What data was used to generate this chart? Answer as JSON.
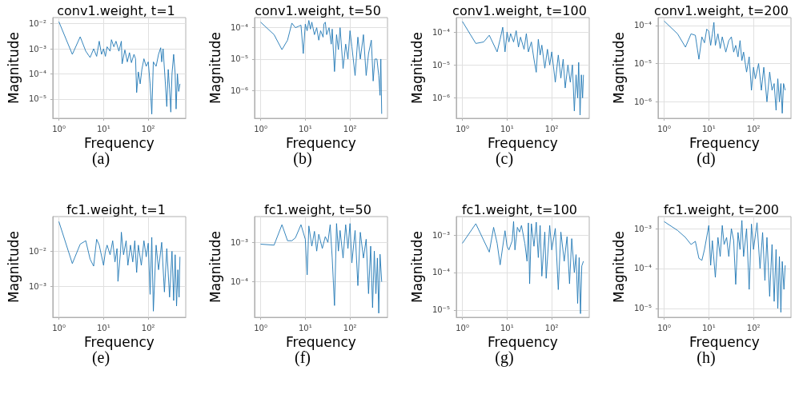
{
  "chart_data": [
    {
      "type": "line",
      "title": "conv1.weight, t=1",
      "xlabel": "Frequency",
      "ylabel": "Magnitude",
      "annotations": [
        "(a)"
      ],
      "log": "xy",
      "grid": true,
      "xlim": [
        0.73,
        690
      ],
      "xticks": [
        {
          "value": 1,
          "label": "10⁰"
        },
        {
          "value": 10,
          "label": "10¹"
        },
        {
          "value": 100,
          "label": "10²"
        }
      ],
      "ylim": [
        1.7e-06,
        0.0175
      ],
      "yticks": [
        {
          "value": 0.01,
          "label": "10⁻²"
        },
        {
          "value": 0.001,
          "label": "10⁻³"
        },
        {
          "value": 0.0001,
          "label": "10⁻⁴"
        },
        {
          "value": 1e-05,
          "label": "10⁻⁵"
        }
      ],
      "series": [
        {
          "color": "#1f77b4",
          "x": [
            1,
            2,
            3,
            4,
            5,
            6,
            7,
            8,
            9,
            10,
            11,
            12,
            14,
            15,
            17,
            19,
            22,
            25,
            26,
            30,
            34,
            38,
            42,
            48,
            52,
            55,
            60,
            66,
            72,
            80,
            90,
            100,
            110,
            120,
            130,
            150,
            170,
            190,
            200,
            215,
            240,
            260,
            280,
            300,
            320,
            340,
            370,
            400,
            420,
            450,
            480,
            512
          ],
          "values": [
            0.012,
            0.0006,
            0.003,
            0.0008,
            0.00045,
            0.001,
            0.0005,
            0.002,
            0.0006,
            0.001,
            0.0005,
            0.0012,
            0.0008,
            0.0023,
            0.0012,
            0.002,
            0.0008,
            0.002,
            0.00025,
            0.0009,
            0.0003,
            0.0007,
            0.00028,
            0.0006,
            0.0004,
            1.8e-05,
            0.00012,
            4e-05,
            0.00015,
            0.0004,
            0.0002,
            0.0003,
            4e-05,
            2.5e-06,
            0.0003,
            0.0002,
            0.0006,
            0.0011,
            0.0003,
            0.001,
            5e-05,
            5e-06,
            0.00015,
            2.5e-05,
            3e-06,
            0.0001,
            0.0006,
            0.0001,
            4e-06,
            0.0001,
            2e-05,
            4e-05
          ]
        }
      ]
    },
    {
      "type": "line",
      "title": "conv1.weight, t=50",
      "xlabel": "Frequency",
      "ylabel": "Magnitude",
      "annotations": [
        "(b)"
      ],
      "log": "xy",
      "grid": true,
      "xlim": [
        0.73,
        690
      ],
      "xticks": [
        {
          "value": 1,
          "label": "10⁰"
        },
        {
          "value": 10,
          "label": "10¹"
        },
        {
          "value": 100,
          "label": "10²"
        }
      ],
      "ylim": [
        1.3e-07,
        0.00021
      ],
      "yticks": [
        {
          "value": 0.0001,
          "label": "10⁻⁴"
        },
        {
          "value": 1e-05,
          "label": "10⁻⁵"
        },
        {
          "value": 1e-06,
          "label": "10⁻⁶"
        }
      ],
      "series": [
        {
          "color": "#1f77b4",
          "x": [
            1,
            2,
            3,
            4,
            5,
            6,
            7,
            8,
            9,
            10,
            11,
            12,
            13,
            14,
            16,
            18,
            20,
            22,
            25,
            26,
            28,
            30,
            34,
            38,
            40,
            45,
            50,
            55,
            60,
            70,
            80,
            90,
            100,
            110,
            130,
            150,
            170,
            200,
            230,
            260,
            300,
            330,
            360,
            400,
            440,
            470,
            490,
            512
          ],
          "values": [
            0.00015,
            6e-05,
            2e-05,
            4e-05,
            0.00014,
            0.0001,
            0.00011,
            0.00012,
            1.5e-05,
            0.00013,
            8e-05,
            0.00017,
            9e-05,
            0.00015,
            6e-05,
            0.0001,
            4e-05,
            8e-05,
            5e-05,
            0.00013,
            0.00015,
            6e-05,
            0.0001,
            3e-05,
            9e-05,
            4e-06,
            6e-05,
            2e-05,
            0.0001,
            5e-06,
            3e-05,
            1e-05,
            8e-05,
            2.5e-05,
            3e-06,
            5e-05,
            1e-05,
            6e-05,
            3e-06,
            1.5e-05,
            4e-05,
            2e-06,
            1e-05,
            1e-05,
            3e-06,
            7e-07,
            1e-05,
            1.8e-07
          ]
        }
      ]
    },
    {
      "type": "line",
      "title": "conv1.weight, t=100",
      "xlabel": "Frequency",
      "ylabel": "Magnitude",
      "annotations": [
        "(c)"
      ],
      "log": "xy",
      "grid": true,
      "xlim": [
        0.73,
        690
      ],
      "xticks": [
        {
          "value": 1,
          "label": "10⁰"
        },
        {
          "value": 10,
          "label": "10¹"
        },
        {
          "value": 100,
          "label": "10²"
        }
      ],
      "ylim": [
        2.4e-07,
        0.000275
      ],
      "yticks": [
        {
          "value": 0.0001,
          "label": "10⁻⁴"
        },
        {
          "value": 1e-05,
          "label": "10⁻⁵"
        },
        {
          "value": 1e-06,
          "label": "10⁻⁶"
        }
      ],
      "series": [
        {
          "color": "#1f77b4",
          "x": [
            1,
            2,
            3,
            4,
            6,
            7,
            8,
            9,
            10,
            11,
            12,
            14,
            16,
            18,
            20,
            24,
            27,
            30,
            35,
            40,
            45,
            50,
            55,
            60,
            70,
            80,
            90,
            100,
            120,
            140,
            160,
            180,
            200,
            230,
            260,
            290,
            320,
            350,
            380,
            400,
            430,
            460,
            490,
            512
          ],
          "values": [
            0.00021,
            4.5e-05,
            5e-05,
            8e-05,
            2.5e-05,
            6e-05,
            0.00014,
            2.5e-05,
            0.0001,
            5e-05,
            9e-05,
            5e-05,
            0.00011,
            3.5e-05,
            7e-05,
            3e-05,
            9e-05,
            2.5e-05,
            5e-05,
            1.5e-05,
            6e-06,
            6e-05,
            2e-05,
            4e-05,
            8e-06,
            3e-05,
            1e-05,
            2.5e-05,
            3e-06,
            2e-05,
            4e-06,
            1.5e-05,
            2e-06,
            1e-05,
            3e-06,
            1e-05,
            4e-07,
            5e-06,
            1e-06,
            1.2e-05,
            3e-07,
            5e-06,
            1e-06,
            5e-06
          ]
        }
      ]
    },
    {
      "type": "line",
      "title": "conv1.weight, t=200",
      "xlabel": "Frequency",
      "ylabel": "Magnitude",
      "annotations": [
        "(d)"
      ],
      "log": "xy",
      "grid": true,
      "xlim": [
        0.73,
        690
      ],
      "xticks": [
        {
          "value": 1,
          "label": "10⁰"
        },
        {
          "value": 10,
          "label": "10¹"
        },
        {
          "value": 100,
          "label": "10²"
        }
      ],
      "ylim": [
        3.7e-07,
        0.00016
      ],
      "yticks": [
        {
          "value": 0.0001,
          "label": "10⁻⁴"
        },
        {
          "value": 1e-05,
          "label": "10⁻⁵"
        },
        {
          "value": 1e-06,
          "label": "10⁻⁶"
        }
      ],
      "series": [
        {
          "color": "#1f77b4",
          "x": [
            1,
            2,
            3,
            4,
            5,
            6,
            7,
            8,
            9,
            10,
            11,
            12,
            13,
            14,
            16,
            18,
            20,
            24,
            28,
            32,
            36,
            40,
            45,
            50,
            55,
            60,
            70,
            80,
            90,
            100,
            110,
            130,
            150,
            170,
            200,
            230,
            260,
            290,
            320,
            350,
            380,
            410,
            440,
            470,
            512
          ],
          "values": [
            0.00013,
            6e-05,
            2.7e-05,
            6e-05,
            5.5e-05,
            1.3e-05,
            5e-05,
            3.5e-05,
            8e-05,
            7e-05,
            3e-05,
            6e-05,
            0.00012,
            3e-05,
            6e-05,
            2.5e-05,
            5e-05,
            2e-05,
            4e-05,
            5e-05,
            2e-05,
            3e-05,
            1.5e-05,
            4e-05,
            1.2e-05,
            2e-05,
            6e-06,
            1.5e-05,
            2e-06,
            8e-06,
            4e-06,
            1e-05,
            2e-06,
            8e-06,
            1e-06,
            6e-06,
            2e-06,
            3e-06,
            6e-07,
            4e-06,
            1e-06,
            3e-06,
            5e-07,
            3e-06,
            2e-06
          ]
        }
      ]
    },
    {
      "type": "line",
      "title": "fc1.weight, t=1",
      "xlabel": "Frequency",
      "ylabel": "Magnitude",
      "annotations": [
        "(e)"
      ],
      "log": "xy",
      "grid": true,
      "xlim": [
        0.73,
        690
      ],
      "xticks": [
        {
          "value": 1,
          "label": "10⁰"
        },
        {
          "value": 10,
          "label": "10¹"
        },
        {
          "value": 100,
          "label": "10²"
        }
      ],
      "ylim": [
        0.000134,
        0.097
      ],
      "yticks": [
        {
          "value": 0.01,
          "label": "10⁻²"
        },
        {
          "value": 0.001,
          "label": "10⁻³"
        }
      ],
      "series": [
        {
          "color": "#1f77b4",
          "x": [
            1,
            2,
            3,
            4,
            5,
            6,
            7,
            8,
            10,
            11,
            12,
            14,
            16,
            18,
            20,
            21,
            24,
            25,
            28,
            32,
            35,
            40,
            45,
            50,
            55,
            60,
            70,
            80,
            90,
            100,
            110,
            120,
            130,
            150,
            170,
            200,
            230,
            260,
            300,
            340,
            370,
            400,
            430,
            460,
            490,
            512
          ],
          "values": [
            0.07,
            0.0045,
            0.016,
            0.02,
            0.006,
            0.0038,
            0.022,
            0.015,
            0.004,
            0.01,
            0.015,
            0.008,
            0.02,
            0.005,
            0.012,
            0.0014,
            0.01,
            0.035,
            0.008,
            0.02,
            0.004,
            0.015,
            0.005,
            0.02,
            0.0025,
            0.015,
            0.004,
            0.02,
            0.007,
            0.017,
            0.0006,
            0.025,
            0.0002,
            0.015,
            0.003,
            0.018,
            0.0007,
            0.012,
            0.0005,
            0.01,
            0.0004,
            0.008,
            0.00028,
            0.003,
            0.0005,
            0.007
          ]
        }
      ]
    },
    {
      "type": "line",
      "title": "fc1.weight, t=50",
      "xlabel": "Frequency",
      "ylabel": "Magnitude",
      "annotations": [
        "(f)"
      ],
      "log": "xy",
      "grid": true,
      "xlim": [
        0.73,
        690
      ],
      "xticks": [
        {
          "value": 1,
          "label": "10⁰"
        },
        {
          "value": 10,
          "label": "10¹"
        },
        {
          "value": 100,
          "label": "10²"
        }
      ],
      "ylim": [
        1.26e-05,
        0.0045
      ],
      "yticks": [
        {
          "value": 0.001,
          "label": "10⁻³"
        },
        {
          "value": 0.0001,
          "label": "10⁻⁴"
        }
      ],
      "series": [
        {
          "color": "#1f77b4",
          "x": [
            1,
            2,
            3,
            4,
            5,
            6,
            8,
            10,
            11,
            12,
            14,
            16,
            18,
            20,
            24,
            28,
            32,
            36,
            40,
            45,
            50,
            55,
            60,
            70,
            80,
            90,
            100,
            110,
            130,
            150,
            170,
            200,
            230,
            260,
            290,
            320,
            350,
            380,
            410,
            440,
            470,
            512
          ],
          "values": [
            0.0009,
            0.00085,
            0.0028,
            0.0011,
            0.0011,
            0.0013,
            0.0028,
            0.0012,
            0.00015,
            0.0026,
            0.0008,
            0.0019,
            0.0006,
            0.0016,
            0.0007,
            0.0014,
            0.001,
            0.0028,
            0.0004,
            2.5e-05,
            0.003,
            0.0006,
            0.002,
            0.0004,
            0.0028,
            0.0007,
            0.003,
            0.0003,
            0.002,
            8e-05,
            0.0018,
            0.0004,
            0.0012,
            5e-05,
            0.0008,
            2.2e-05,
            0.0006,
            5e-05,
            0.0004,
            1.6e-05,
            0.0005,
            0.0001
          ]
        }
      ]
    },
    {
      "type": "line",
      "title": "fc1.weight, t=100",
      "xlabel": "Frequency",
      "ylabel": "Magnitude",
      "annotations": [
        "(g)"
      ],
      "log": "xy",
      "grid": true,
      "xlim": [
        0.73,
        690
      ],
      "xticks": [
        {
          "value": 1,
          "label": "10⁰"
        },
        {
          "value": 10,
          "label": "10¹"
        },
        {
          "value": 100,
          "label": "10²"
        }
      ],
      "ylim": [
        6.4e-06,
        0.0031
      ],
      "yticks": [
        {
          "value": 0.001,
          "label": "10⁻³"
        },
        {
          "value": 0.0001,
          "label": "10⁻⁴"
        },
        {
          "value": 1e-05,
          "label": "10⁻⁵"
        }
      ],
      "series": [
        {
          "color": "#1f77b4",
          "x": [
            1,
            2,
            4,
            5,
            6,
            7,
            9,
            10,
            11,
            13,
            14,
            15,
            17,
            19,
            21,
            25,
            28,
            30,
            32,
            35,
            40,
            45,
            50,
            55,
            60,
            70,
            75,
            90,
            100,
            120,
            140,
            160,
            190,
            220,
            250,
            280,
            320,
            350,
            380,
            410,
            440,
            470,
            512
          ],
          "values": [
            0.0006,
            0.002,
            0.00035,
            0.0016,
            0.0006,
            0.00016,
            0.0013,
            0.0005,
            0.0004,
            0.0007,
            0.0023,
            0.0004,
            0.0016,
            0.0012,
            0.0018,
            0.0006,
            0.0002,
            0.0021,
            5e-05,
            0.002,
            0.0005,
            0.0022,
            0.00025,
            0.0018,
            8e-05,
            0.0012,
            7e-05,
            0.0018,
            0.0004,
            0.0015,
            3.5e-05,
            0.0012,
            0.0002,
            0.0009,
            5e-05,
            0.0008,
            0.0001,
            0.0003,
            1.5e-05,
            0.00025,
            8e-06,
            0.00015,
            0.0002
          ]
        }
      ]
    },
    {
      "type": "line",
      "title": "fc1.weight, t=200",
      "xlabel": "Frequency",
      "ylabel": "Magnitude",
      "annotations": [
        "(h)"
      ],
      "log": "xy",
      "grid": true,
      "xlim": [
        0.73,
        690
      ],
      "xticks": [
        {
          "value": 1,
          "label": "10⁰"
        },
        {
          "value": 10,
          "label": "10¹"
        },
        {
          "value": 100,
          "label": "10²"
        }
      ],
      "ylim": [
        6e-06,
        0.002
      ],
      "yticks": [
        {
          "value": 0.001,
          "label": "10⁻³"
        },
        {
          "value": 0.0001,
          "label": "10⁻⁴"
        },
        {
          "value": 1e-05,
          "label": "10⁻⁵"
        }
      ],
      "series": [
        {
          "color": "#1f77b4",
          "x": [
            1,
            2,
            3,
            4,
            5,
            6,
            7,
            8,
            10,
            11,
            12,
            14,
            16,
            18,
            20,
            22,
            25,
            28,
            32,
            36,
            40,
            45,
            50,
            55,
            60,
            70,
            80,
            90,
            100,
            120,
            140,
            160,
            180,
            200,
            230,
            260,
            290,
            320,
            350,
            380,
            410,
            440,
            480,
            512
          ],
          "values": [
            0.0015,
            0.0009,
            0.0006,
            0.0004,
            0.00048,
            0.00018,
            0.00016,
            0.0003,
            0.0012,
            0.00012,
            0.0005,
            6e-05,
            0.0006,
            0.0002,
            0.0012,
            0.0004,
            0.0006,
            0.0002,
            0.001,
            0.0005,
            4e-05,
            0.0008,
            0.0003,
            0.0016,
            0.0002,
            0.001,
            3e-05,
            0.0013,
            0.0003,
            0.0014,
            0.0001,
            0.0008,
            5e-05,
            0.0006,
            2e-05,
            0.0004,
            1.5e-05,
            0.0003,
            1e-05,
            0.0002,
            8e-06,
            0.00015,
            3e-05,
            0.00012
          ]
        }
      ]
    }
  ]
}
